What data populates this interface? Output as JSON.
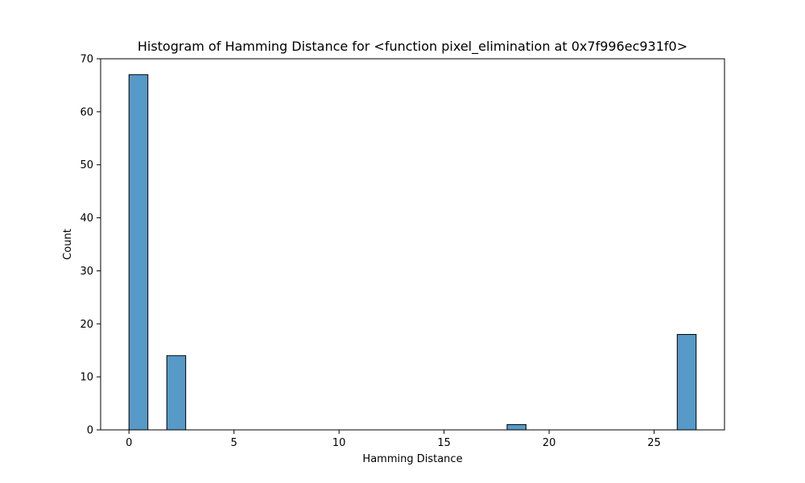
{
  "chart_data": {
    "type": "bar",
    "title": "Histogram of Hamming Distance for <function pixel_elimination at 0x7f996ec931f0>",
    "xlabel": "Hamming Distance",
    "ylabel": "Count",
    "xlim": [
      -1.35,
      28.35
    ],
    "ylim": [
      0,
      70
    ],
    "xticks": [
      0,
      5,
      10,
      15,
      20,
      25
    ],
    "yticks": [
      0,
      10,
      20,
      30,
      40,
      50,
      60,
      70
    ],
    "bin_width": 0.9,
    "bins": [
      {
        "x0": 0.0,
        "count": 67
      },
      {
        "x0": 0.9,
        "count": 0
      },
      {
        "x0": 1.8,
        "count": 14
      },
      {
        "x0": 2.7,
        "count": 0
      },
      {
        "x0": 3.6,
        "count": 0
      },
      {
        "x0": 4.5,
        "count": 0
      },
      {
        "x0": 5.4,
        "count": 0
      },
      {
        "x0": 6.3,
        "count": 0
      },
      {
        "x0": 7.2,
        "count": 0
      },
      {
        "x0": 8.1,
        "count": 0
      },
      {
        "x0": 9.0,
        "count": 0
      },
      {
        "x0": 9.9,
        "count": 0
      },
      {
        "x0": 10.8,
        "count": 0
      },
      {
        "x0": 11.7,
        "count": 0
      },
      {
        "x0": 12.6,
        "count": 0
      },
      {
        "x0": 13.5,
        "count": 0
      },
      {
        "x0": 14.4,
        "count": 0
      },
      {
        "x0": 15.3,
        "count": 0
      },
      {
        "x0": 16.2,
        "count": 0
      },
      {
        "x0": 17.1,
        "count": 0
      },
      {
        "x0": 18.0,
        "count": 1
      },
      {
        "x0": 18.9,
        "count": 0
      },
      {
        "x0": 19.8,
        "count": 0
      },
      {
        "x0": 20.7,
        "count": 0
      },
      {
        "x0": 21.6,
        "count": 0
      },
      {
        "x0": 22.5,
        "count": 0
      },
      {
        "x0": 23.4,
        "count": 0
      },
      {
        "x0": 24.3,
        "count": 0
      },
      {
        "x0": 25.2,
        "count": 0
      },
      {
        "x0": 26.1,
        "count": 18
      }
    ],
    "bar_color": "#5799c7",
    "edge_color": "#000000",
    "grid": false,
    "legend": false
  }
}
